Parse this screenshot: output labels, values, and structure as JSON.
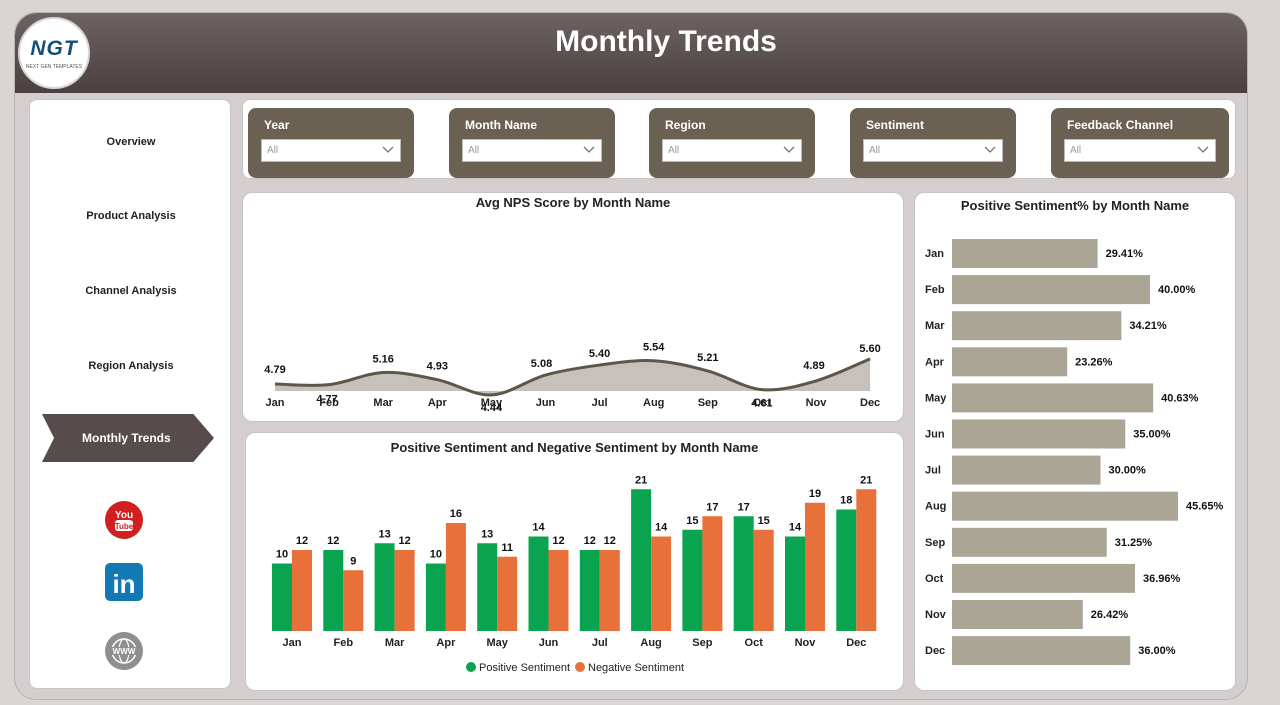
{
  "header": {
    "title": "Monthly Trends",
    "logo_text": "NGT",
    "logo_sub": "NEXT GEN TEMPLATES"
  },
  "sidebar": {
    "items": [
      {
        "label": "Overview"
      },
      {
        "label": "Product Analysis"
      },
      {
        "label": "Channel Analysis"
      },
      {
        "label": "Region Analysis"
      },
      {
        "label": "Monthly Trends",
        "active": true
      }
    ],
    "social": [
      {
        "icon": "youtube-icon",
        "text": "You Tube"
      },
      {
        "icon": "linkedin-icon",
        "text": "in"
      },
      {
        "icon": "globe-icon",
        "text": "WWW"
      }
    ]
  },
  "filters": [
    {
      "label": "Year",
      "value": "All"
    },
    {
      "label": "Month Name",
      "value": "All"
    },
    {
      "label": "Region",
      "value": "All"
    },
    {
      "label": "Sentiment",
      "value": "All"
    },
    {
      "label": "Feedback Channel",
      "value": "All"
    }
  ],
  "colors": {
    "header": "#564c4b",
    "slicer": "#6b6152",
    "area_fill": "#c6c2bb",
    "line": "#5f5649",
    "bar_gray": "#aba596",
    "positive": "#0aa450",
    "negative": "#e8703a"
  },
  "chart_data": [
    {
      "type": "area",
      "title": "Avg NPS Score by Month Name",
      "categories": [
        "Jan",
        "Feb",
        "Mar",
        "Apr",
        "May",
        "Jun",
        "Jul",
        "Aug",
        "Sep",
        "Oct",
        "Nov",
        "Dec"
      ],
      "values": [
        4.79,
        4.77,
        5.16,
        4.93,
        4.44,
        5.08,
        5.4,
        5.54,
        5.21,
        4.61,
        4.89,
        5.6
      ],
      "labels": [
        "4.79",
        "4.77",
        "5.16",
        "4.93",
        "4.44",
        "5.08",
        "5.40",
        "5.54",
        "5.21",
        "4.61",
        "4.89",
        "5.60"
      ]
    },
    {
      "type": "bar",
      "title": "Positive Sentiment% by Month Name",
      "categories": [
        "Jan",
        "Feb",
        "Mar",
        "Apr",
        "May",
        "Jun",
        "Jul",
        "Aug",
        "Sep",
        "Oct",
        "Nov",
        "Dec"
      ],
      "values": [
        29.41,
        40.0,
        34.21,
        23.26,
        40.63,
        35.0,
        30.0,
        45.65,
        31.25,
        36.96,
        26.42,
        36.0
      ],
      "labels": [
        "29.41%",
        "40.00%",
        "34.21%",
        "23.26%",
        "40.63%",
        "35.00%",
        "30.00%",
        "45.65%",
        "31.25%",
        "36.96%",
        "26.42%",
        "36.00%"
      ]
    },
    {
      "type": "bar",
      "title": "Positive Sentiment and Negative Sentiment by Month Name",
      "categories": [
        "Jan",
        "Feb",
        "Mar",
        "Apr",
        "May",
        "Jun",
        "Jul",
        "Aug",
        "Sep",
        "Oct",
        "Nov",
        "Dec"
      ],
      "series": [
        {
          "name": "Positive Sentiment",
          "values": [
            10,
            12,
            13,
            10,
            13,
            14,
            12,
            21,
            15,
            17,
            14,
            18
          ]
        },
        {
          "name": "Negative Sentiment",
          "values": [
            12,
            9,
            12,
            16,
            11,
            12,
            12,
            14,
            17,
            15,
            19,
            21
          ]
        }
      ],
      "legend": "bottom"
    }
  ]
}
